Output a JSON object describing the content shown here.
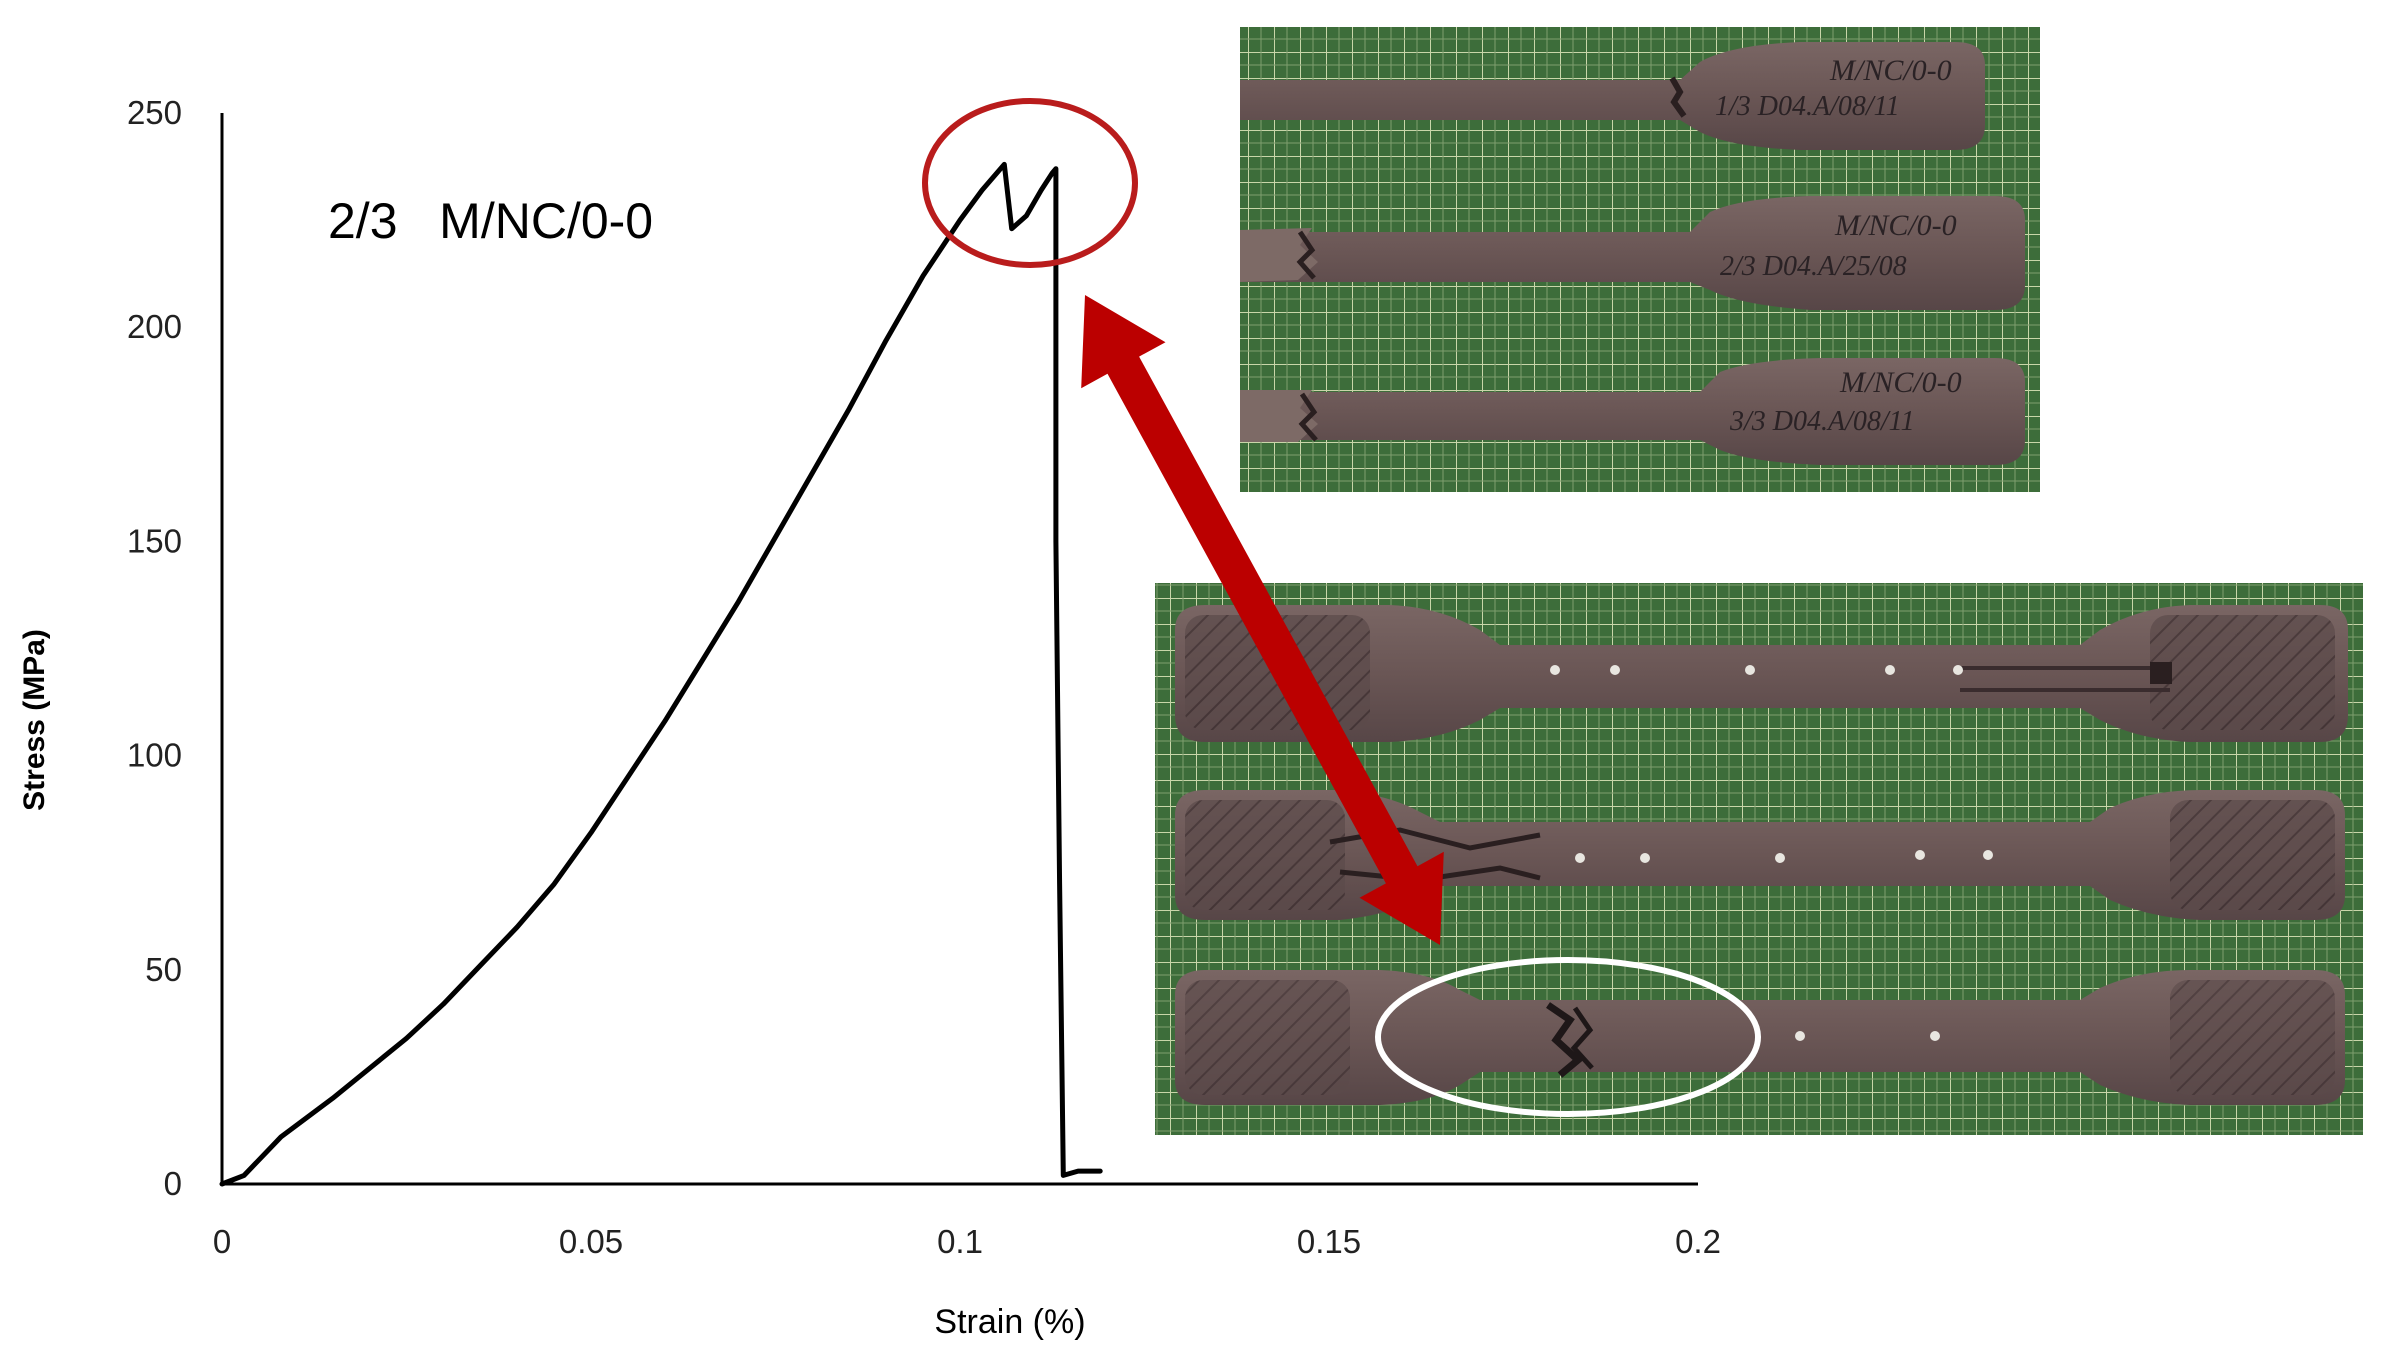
{
  "chart_data": {
    "type": "line",
    "annotation": "2/3   M/NC/0-0",
    "xlabel": "Strain (%)",
    "ylabel": "Stress  (MPa)",
    "xlim": [
      0,
      0.2
    ],
    "ylim": [
      0,
      250
    ],
    "x_ticks": [
      0,
      0.05,
      0.1,
      0.15,
      0.2
    ],
    "x_tick_labels": [
      "0",
      "0.05",
      "0.1",
      "0.15",
      "0.2"
    ],
    "y_ticks": [
      0,
      50,
      100,
      150,
      200,
      250
    ],
    "y_tick_labels": [
      "0",
      "50",
      "100",
      "150",
      "200",
      "250"
    ],
    "grid": false,
    "series": [
      {
        "color": "#000000",
        "points": [
          [
            0,
            0
          ],
          [
            0.003,
            2
          ],
          [
            0.008,
            11
          ],
          [
            0.015,
            20
          ],
          [
            0.02,
            27
          ],
          [
            0.025,
            34
          ],
          [
            0.03,
            42
          ],
          [
            0.035,
            51
          ],
          [
            0.04,
            60
          ],
          [
            0.045,
            70
          ],
          [
            0.05,
            82
          ],
          [
            0.055,
            95
          ],
          [
            0.06,
            108
          ],
          [
            0.065,
            122
          ],
          [
            0.07,
            136
          ],
          [
            0.075,
            151
          ],
          [
            0.08,
            166
          ],
          [
            0.085,
            181
          ],
          [
            0.09,
            197
          ],
          [
            0.095,
            212
          ],
          [
            0.1,
            225
          ],
          [
            0.103,
            232
          ],
          [
            0.106,
            238
          ],
          [
            0.107,
            223
          ],
          [
            0.109,
            226
          ],
          [
            0.111,
            232
          ],
          [
            0.1125,
            236
          ],
          [
            0.113,
            237
          ],
          [
            0.113,
            150
          ],
          [
            0.1135,
            70
          ],
          [
            0.114,
            2
          ],
          [
            0.116,
            3
          ],
          [
            0.119,
            3
          ]
        ]
      }
    ],
    "highlight_colors": {
      "peak_circle": "#b91c1c",
      "arrow": "#bb0000",
      "fracture_circle": "#ffffff"
    }
  },
  "photos": {
    "top_specimens": [
      {
        "label_lines": [
          "M/NC/0-0",
          "1/3  D04.A/08/11"
        ]
      },
      {
        "label_lines": [
          "M/NC/0-0",
          "2/3  D04.A/25/08"
        ]
      },
      {
        "label_lines": [
          "M/NC/0-0",
          "3/3  D04.A/08/11"
        ]
      }
    ],
    "mat_color": "#3e6e3b",
    "specimen_color": "#6c5a58"
  }
}
